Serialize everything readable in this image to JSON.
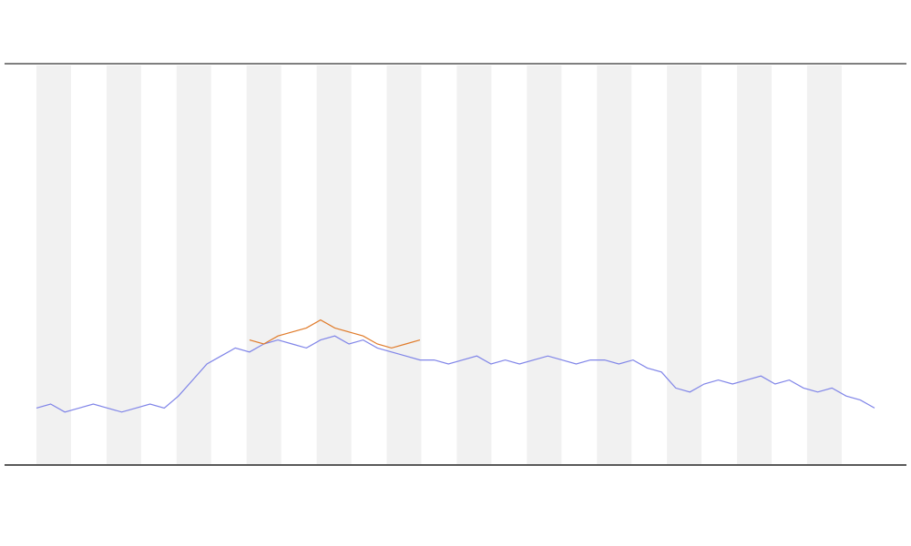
{
  "chart_data": {
    "type": "line",
    "ylim": [
      0,
      100
    ],
    "series": [
      {
        "color": "#7f84e8",
        "values": [
          14,
          15,
          13,
          14,
          15,
          14,
          13,
          14,
          15,
          14,
          17,
          21,
          25,
          27,
          29,
          28,
          30,
          31,
          30,
          29,
          31,
          32,
          30,
          31,
          29,
          28,
          27,
          26,
          26,
          25,
          26,
          27,
          25,
          26,
          25,
          26,
          27,
          26,
          25,
          26,
          26,
          25,
          26,
          24,
          23,
          19,
          18,
          20,
          21,
          20,
          21,
          22,
          20,
          21,
          19,
          18,
          19,
          17,
          16,
          14
        ]
      },
      {
        "color": "#e07b2a",
        "values": [
          null,
          null,
          null,
          null,
          null,
          null,
          null,
          null,
          null,
          null,
          null,
          null,
          null,
          null,
          null,
          31,
          30,
          32,
          33,
          34,
          36,
          34,
          33,
          32,
          30,
          29,
          30,
          31,
          null,
          null,
          null,
          null,
          null,
          null,
          null,
          null,
          null,
          null,
          null,
          null,
          null,
          null,
          null,
          null,
          null,
          null,
          null,
          null,
          null,
          null,
          null,
          null,
          null,
          null,
          null,
          null,
          null,
          null,
          null,
          null
        ]
      }
    ]
  }
}
